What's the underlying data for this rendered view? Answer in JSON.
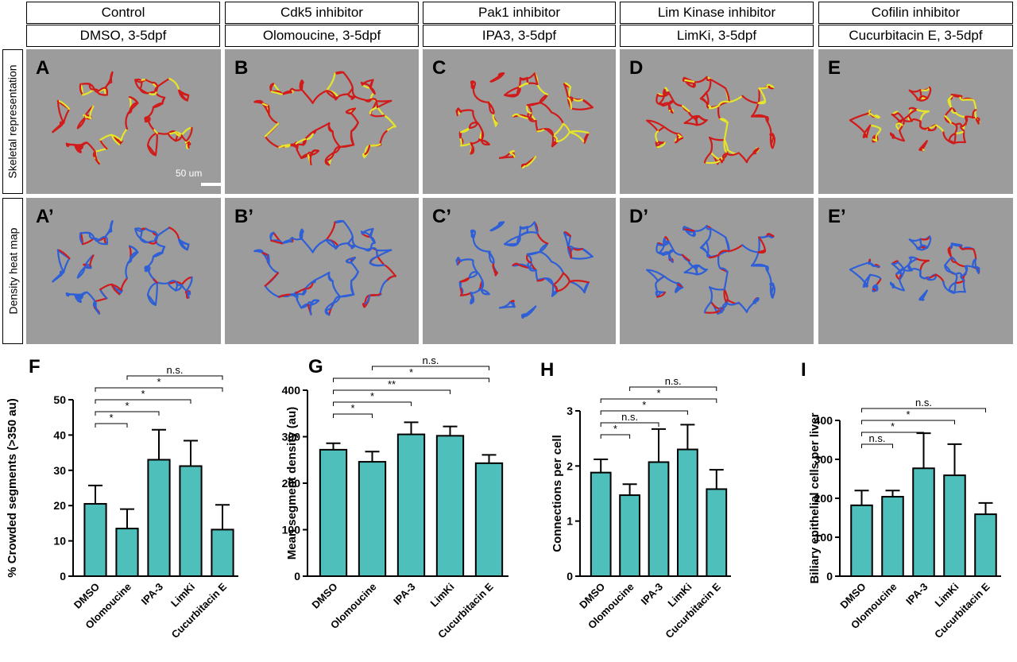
{
  "columns": [
    {
      "label": "Control",
      "condition": "DMSO, 3-5dpf"
    },
    {
      "label": "Cdk5 inhibitor",
      "condition": "Olomoucine, 3-5dpf"
    },
    {
      "label": "Pak1 inhibitor",
      "condition": "IPA3, 3-5dpf"
    },
    {
      "label": "Lim Kinase inhibitor",
      "condition": "LimKi, 3-5dpf"
    },
    {
      "label": "Cofilin inhibitor",
      "condition": "Cucurbitacin E, 3-5dpf"
    }
  ],
  "rows": [
    {
      "label": "Skeletal representation",
      "panels": [
        "A",
        "B",
        "C",
        "D",
        "E"
      ]
    },
    {
      "label": "Density heat map",
      "panels": [
        "A’",
        "B’",
        "C’",
        "D’",
        "E’"
      ]
    }
  ],
  "scale_bar": "50 um",
  "colors": {
    "panel_bg": "#9c9c9c",
    "skeleton_main": "#d11a1a",
    "skeleton_tip": "#e5e52a",
    "heat_low": "#2f5fd6",
    "heat_high": "#d11a1a",
    "bar_fill": "#4fbfbb"
  },
  "chart_data": [
    {
      "panel": "F",
      "type": "bar",
      "ylabel": "% Crowded segments (>350 au)",
      "categories": [
        "DMSO",
        "Olomoucine",
        "IPA-3",
        "LimKi",
        "Cucurbitacin E"
      ],
      "values": [
        20.5,
        13.5,
        33,
        31.2,
        13.2
      ],
      "errors": [
        5.2,
        5.5,
        8.5,
        7.2,
        7
      ],
      "ylim": [
        0,
        50
      ],
      "yticks": [
        0,
        10,
        20,
        30,
        40,
        50
      ],
      "significance": [
        {
          "from": 0,
          "to": 1,
          "label": "*"
        },
        {
          "from": 0,
          "to": 2,
          "label": "*"
        },
        {
          "from": 0,
          "to": 3,
          "label": "*"
        },
        {
          "from": 0,
          "to": 4,
          "label": "*"
        },
        {
          "from": 1,
          "to": 4,
          "label": "n.s."
        }
      ]
    },
    {
      "panel": "G",
      "type": "bar",
      "ylabel": "Mean segment density (au)",
      "categories": [
        "DMSO",
        "Olomoucine",
        "IPA-3",
        "LimKi",
        "Cucurbitacin E"
      ],
      "values": [
        272,
        246,
        305,
        302,
        243
      ],
      "errors": [
        14,
        22,
        26,
        20,
        18
      ],
      "ylim": [
        0,
        400
      ],
      "yticks": [
        0,
        100,
        200,
        300,
        400
      ],
      "significance": [
        {
          "from": 0,
          "to": 1,
          "label": "*"
        },
        {
          "from": 0,
          "to": 2,
          "label": "*"
        },
        {
          "from": 0,
          "to": 3,
          "label": "**"
        },
        {
          "from": 0,
          "to": 4,
          "label": "*"
        },
        {
          "from": 1,
          "to": 4,
          "label": "n.s."
        }
      ]
    },
    {
      "panel": "H",
      "type": "bar",
      "ylabel": "Connections per cell",
      "categories": [
        "DMSO",
        "Olomoucine",
        "IPA-3",
        "LimKi",
        "Cucurbitacin E"
      ],
      "values": [
        1.88,
        1.47,
        2.07,
        2.3,
        1.58
      ],
      "errors": [
        0.24,
        0.2,
        0.6,
        0.45,
        0.35
      ],
      "ylim": [
        0,
        3
      ],
      "yticks": [
        0,
        1,
        2,
        3
      ],
      "significance": [
        {
          "from": 0,
          "to": 1,
          "label": "*"
        },
        {
          "from": 0,
          "to": 2,
          "label": "n.s."
        },
        {
          "from": 0,
          "to": 3,
          "label": "*"
        },
        {
          "from": 0,
          "to": 4,
          "label": "*"
        },
        {
          "from": 1,
          "to": 4,
          "label": "n.s."
        }
      ]
    },
    {
      "panel": "I",
      "type": "bar",
      "ylabel": "Biliary epithelial cells per liver",
      "categories": [
        "DMSO",
        "Olomoucine",
        "IPA-3",
        "LimKi",
        "Cucurbitacin E"
      ],
      "values": [
        182,
        204,
        277,
        259,
        159
      ],
      "errors": [
        38,
        16,
        90,
        80,
        29
      ],
      "ylim": [
        0,
        400
      ],
      "yticks": [
        0,
        100,
        200,
        300,
        400
      ],
      "significance": [
        {
          "from": 0,
          "to": 1,
          "label": "n.s."
        },
        {
          "from": 0,
          "to": 2,
          "label": "*"
        },
        {
          "from": 0,
          "to": 3,
          "label": "*"
        },
        {
          "from": 0,
          "to": 4,
          "label": "n.s."
        }
      ]
    }
  ]
}
